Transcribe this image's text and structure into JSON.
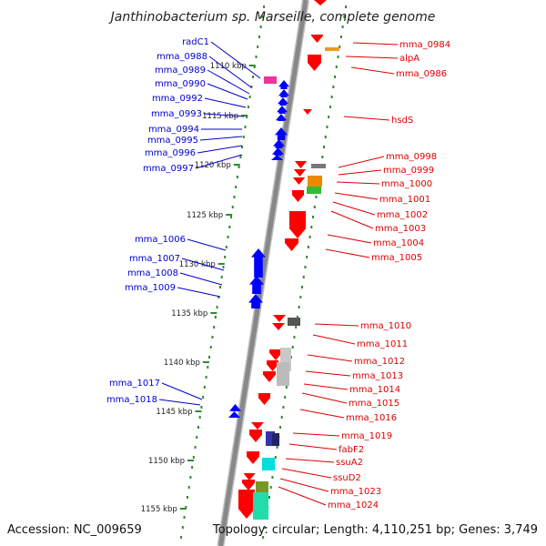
{
  "title": "Janthinobacterium sp. Marseille, complete genome",
  "footer": {
    "accession": "Accession: NC_009659",
    "summary": "Topology: circular; Length: 4,110,251 bp; Genes: 3,749"
  },
  "colors": {
    "reverse_strand": "#0000ff",
    "forward_strand": "#ff0000",
    "backbone": "#888888",
    "tick": "#2e8b2e",
    "leader_reverse": "#0000cc",
    "leader_forward": "#dd0000"
  },
  "ticks": [
    {
      "label": "1110 kbp"
    },
    {
      "label": "1115 kbp"
    },
    {
      "label": "1120 kbp"
    },
    {
      "label": "1125 kbp"
    },
    {
      "label": "1130 kbp"
    },
    {
      "label": "1135 kbp"
    },
    {
      "label": "1140 kbp"
    },
    {
      "label": "1145 kbp"
    },
    {
      "label": "1150 kbp"
    },
    {
      "label": "1155 kbp"
    }
  ],
  "reverse_genes": [
    {
      "label": "radC1"
    },
    {
      "label": "mma_0988"
    },
    {
      "label": "mma_0989"
    },
    {
      "label": "mma_0990"
    },
    {
      "label": "mma_0992"
    },
    {
      "label": "mma_0993"
    },
    {
      "label": "mma_0994"
    },
    {
      "label": "mma_0995"
    },
    {
      "label": "mma_0996"
    },
    {
      "label": "mma_0997"
    },
    {
      "label": "mma_1006"
    },
    {
      "label": "mma_1007"
    },
    {
      "label": "mma_1008"
    },
    {
      "label": "mma_1009"
    },
    {
      "label": "mma_1017"
    },
    {
      "label": "mma_1018"
    }
  ],
  "forward_genes": [
    {
      "label": "mma_0984"
    },
    {
      "label": "alpA"
    },
    {
      "label": "mma_0986"
    },
    {
      "label": "hsdS"
    },
    {
      "label": "mma_0998"
    },
    {
      "label": "mma_0999"
    },
    {
      "label": "mma_1000"
    },
    {
      "label": "mma_1001"
    },
    {
      "label": "mma_1002"
    },
    {
      "label": "mma_1003"
    },
    {
      "label": "mma_1004"
    },
    {
      "label": "mma_1005"
    },
    {
      "label": "mma_1010"
    },
    {
      "label": "mma_1011"
    },
    {
      "label": "mma_1012"
    },
    {
      "label": "mma_1013"
    },
    {
      "label": "mma_1014"
    },
    {
      "label": "mma_1015"
    },
    {
      "label": "mma_1016"
    },
    {
      "label": "mma_1019"
    },
    {
      "label": "fabF2"
    },
    {
      "label": "ssuA2"
    },
    {
      "label": "ssuD2"
    },
    {
      "label": "mma_1023"
    },
    {
      "label": "mma_1024"
    }
  ]
}
